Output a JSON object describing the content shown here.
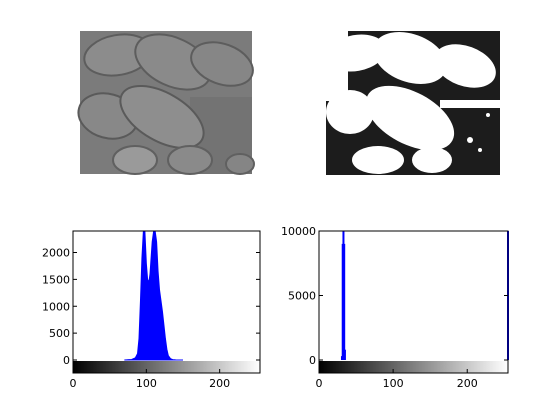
{
  "figure": {
    "background": "#ffffff",
    "accent": "#0000ff"
  },
  "chart_data": [
    {
      "type": "image",
      "name": "original-grayscale-image",
      "title": "",
      "description_colormap": "grayscale",
      "panel_color": "#7a7a7a"
    },
    {
      "type": "image",
      "name": "thresholded-binary-image",
      "title": "",
      "description_colormap": "binary",
      "panel_color": "#ffffff"
    },
    {
      "type": "bar",
      "name": "histogram-original",
      "title": "",
      "xlabel": "",
      "ylabel": "",
      "xlim": [
        0,
        255
      ],
      "ylim": [
        0,
        2400
      ],
      "xticks": [
        0,
        100,
        200
      ],
      "yticks": [
        0,
        500,
        1000,
        1500,
        2000
      ],
      "ytick_labels": [
        "0",
        "500",
        "1000",
        "1500",
        "2000"
      ],
      "xtick_labels": [
        "0",
        "100",
        "200"
      ],
      "series": [
        {
          "name": "pixel-counts",
          "color": "#0000ff",
          "x": [
            70,
            80,
            85,
            88,
            90,
            92,
            94,
            96,
            98,
            100,
            102,
            104,
            105,
            106,
            108,
            110,
            112,
            114,
            116,
            118,
            120,
            122,
            124,
            126,
            128,
            130,
            133,
            136,
            140,
            150
          ],
          "values": [
            0,
            10,
            40,
            120,
            400,
            1100,
            1900,
            2400,
            2400,
            1800,
            1450,
            1500,
            1600,
            1800,
            2200,
            2400,
            2400,
            2200,
            1650,
            1300,
            1100,
            900,
            650,
            400,
            200,
            80,
            25,
            8,
            2,
            0
          ]
        }
      ],
      "colorbar": {
        "range": [
          0,
          255
        ],
        "from": "#000000",
        "to": "#ffffff"
      }
    },
    {
      "type": "bar",
      "name": "histogram-thresholded",
      "title": "",
      "xlabel": "",
      "ylabel": "",
      "xlim": [
        0,
        255
      ],
      "ylim": [
        0,
        10000
      ],
      "xticks": [
        0,
        100,
        200
      ],
      "yticks": [
        0,
        5000,
        10000
      ],
      "ytick_labels": [
        "0",
        "5000",
        "10000"
      ],
      "xtick_labels": [
        "0",
        "100",
        "200"
      ],
      "series": [
        {
          "name": "pixel-counts",
          "color": "#0000ff",
          "x": [
            30,
            31,
            32,
            33,
            34,
            35,
            36,
            255
          ],
          "values": [
            0,
            300,
            9000,
            10000,
            9000,
            800,
            0,
            10000
          ]
        }
      ],
      "colorbar": {
        "range": [
          0,
          255
        ],
        "from": "#000000",
        "to": "#ffffff"
      }
    }
  ]
}
